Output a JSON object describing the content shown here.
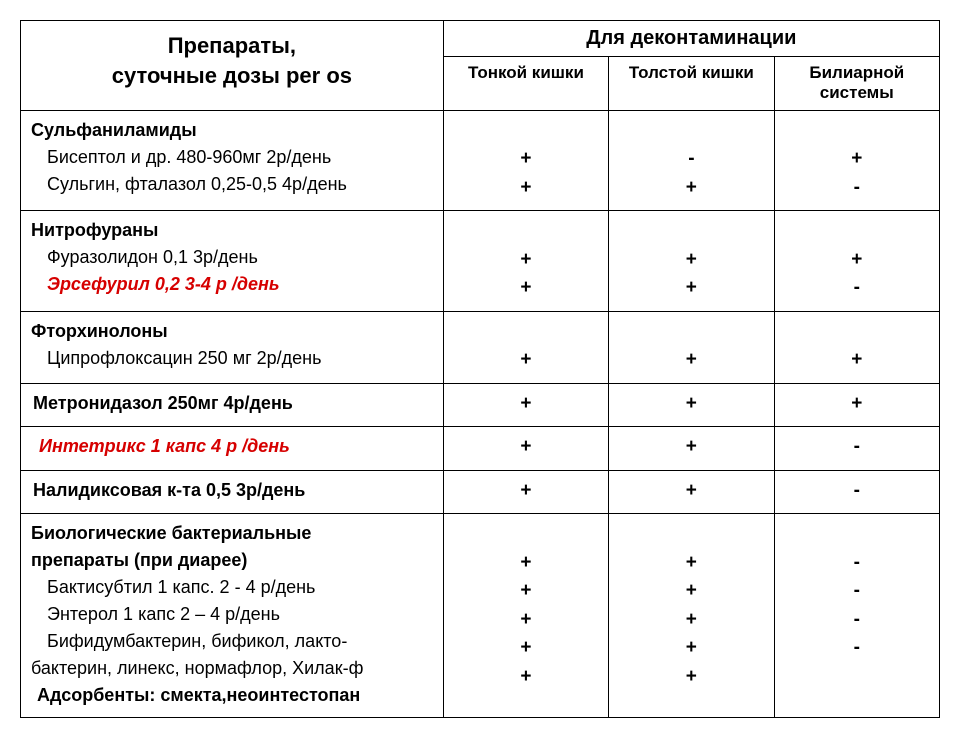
{
  "header": {
    "left_line1": "Препараты,",
    "left_line2": "суточные дозы per os",
    "decont": "Для деконтаминации",
    "cols": [
      "Тонкой кишки",
      "Толстой кишки",
      "Билиарной системы"
    ]
  },
  "groups": [
    {
      "title": "Сульфаниламиды",
      "items": [
        {
          "text": "Бисептол и др.  480-960мг  2р/день",
          "red": false
        },
        {
          "text": "Сульгин, фталазол  0,25-0,5  4р/день",
          "red": false
        }
      ],
      "marks": [
        [
          "+",
          "+"
        ],
        [
          "-",
          "+"
        ],
        [
          "+",
          "-"
        ]
      ]
    },
    {
      "title": "Нитрофураны",
      "items": [
        {
          "text": "Фуразолидон  0,1  3р/день",
          "red": false
        },
        {
          "text": "Эрсефурил  0,2   3-4  р /день",
          "red": true
        }
      ],
      "marks": [
        [
          "+",
          "+"
        ],
        [
          "+",
          "+"
        ],
        [
          "+",
          "-"
        ]
      ]
    },
    {
      "title": "Фторхинолоны",
      "items": [
        {
          "text": "Ципрофлоксацин   250 мг  2р/день",
          "red": false
        }
      ],
      "marks": [
        [
          "+"
        ],
        [
          "+"
        ],
        [
          "+"
        ]
      ]
    },
    {
      "single": true,
      "title": "Метронидазол  250мг  4р/день",
      "marks": [
        [
          "+"
        ],
        [
          "+"
        ],
        [
          "+"
        ]
      ]
    },
    {
      "single": true,
      "red": true,
      "title": "Интетрикс  1  капс  4  р /день",
      "marks": [
        [
          "+"
        ],
        [
          "+"
        ],
        [
          "-"
        ]
      ]
    },
    {
      "single": true,
      "title": "Налидиксовая к-та  0,5  3р/день",
      "marks": [
        [
          "+"
        ],
        [
          "+"
        ],
        [
          "-"
        ]
      ]
    },
    {
      "title_lines": [
        "Биологические бактериальные",
        "препараты (при   диарее)"
      ],
      "items": [
        {
          "text": "Бактисубтил  1 капс.  2 - 4 р/день",
          "red": false
        },
        {
          "text": "Энтерол  1 капс  2 – 4 р/день",
          "red": false
        },
        {
          "text": "Бифидумбактерин, бификол,  лакто-",
          "red": false,
          "noindent": false
        },
        {
          "text": "бактерин, линекс, нормафлор,  Хилак-ф",
          "red": false,
          "cont": true
        },
        {
          "text": "Адсорбенты: смекта,неоинтестопан",
          "red": false,
          "bold": true
        }
      ],
      "marks": [
        [
          "",
          "+",
          "+",
          "+",
          "+",
          "+"
        ],
        [
          "",
          "+",
          "+",
          "+",
          "+",
          "+"
        ],
        [
          "",
          "-",
          "-",
          "-",
          "-",
          ""
        ]
      ]
    }
  ],
  "style": {
    "red_color": "#d60000",
    "border_color": "#000000",
    "bg": "#ffffff",
    "col_widths": [
      "46%",
      "18%",
      "18%",
      "18%"
    ]
  }
}
